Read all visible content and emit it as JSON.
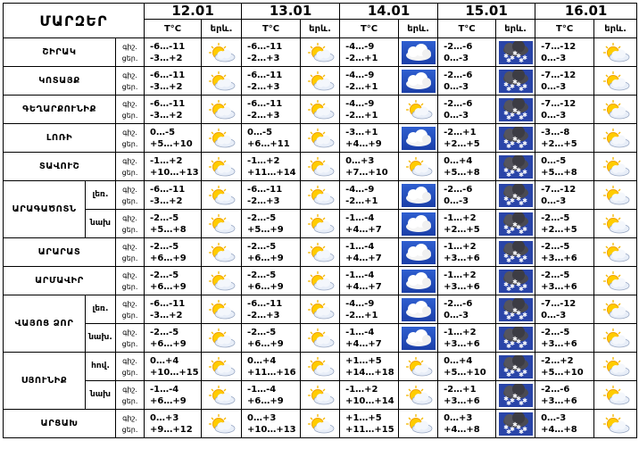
{
  "header": {
    "title": "ՄԱՐԶԵՐ",
    "dates": [
      "12.01",
      "13.01",
      "14.01",
      "15.01",
      "16.01"
    ],
    "temp_label": "T°C",
    "weather_label": "երև."
  },
  "labels": {
    "night": "գիշ.",
    "day": "ցեր."
  },
  "rows": [
    {
      "region": "ՇԻՐԱԿ",
      "sub": "",
      "lbl_n": "գիշ.",
      "lbl_d": "ցեր.",
      "cells": [
        {
          "n": "-6…-11",
          "d": "-3…+2",
          "icon": "partly-cloudy-icon"
        },
        {
          "n": "-6…-11",
          "d": "-2…+3",
          "icon": "partly-cloudy-icon"
        },
        {
          "n": "-4…-9",
          "d": "-2…+1",
          "icon": "cloud-icon"
        },
        {
          "n": "-2…-6",
          "d": "0…-3",
          "icon": "snow-cloud-icon"
        },
        {
          "n": "-7…-12",
          "d": "0…-3",
          "icon": "partly-cloudy-icon"
        }
      ]
    },
    {
      "region": "ԿՈՏԱՅՔ",
      "sub": "",
      "lbl_n": "գիշ.",
      "lbl_d": "ցեր.",
      "cells": [
        {
          "n": "-6…-11",
          "d": "-3…+2",
          "icon": "partly-cloudy-icon"
        },
        {
          "n": "-6…-11",
          "d": "-2…+3",
          "icon": "partly-cloudy-icon"
        },
        {
          "n": "-4…-9",
          "d": "-2…+1",
          "icon": "cloud-icon"
        },
        {
          "n": "-2…-6",
          "d": "0…-3",
          "icon": "snow-cloud-icon"
        },
        {
          "n": "-7…-12",
          "d": "0…-3",
          "icon": "partly-cloudy-icon"
        }
      ]
    },
    {
      "region": "ԳԵՂԱՐՔՈՒՆԻՔ",
      "sub": "",
      "lbl_n": "գիշ.",
      "lbl_d": "ցեր.",
      "cells": [
        {
          "n": "-6…-11",
          "d": "-3…+2",
          "icon": "partly-cloudy-icon"
        },
        {
          "n": "-6…-11",
          "d": "-2…+3",
          "icon": "partly-cloudy-icon"
        },
        {
          "n": "-4…-9",
          "d": "-2…+1",
          "icon": "partly-cloudy-icon"
        },
        {
          "n": "-2…-6",
          "d": "0…-3",
          "icon": "snow-cloud-icon"
        },
        {
          "n": "-7…-12",
          "d": "0…-3",
          "icon": "partly-cloudy-icon"
        }
      ]
    },
    {
      "region": "ԼՈՌԻ",
      "sub": "",
      "lbl_n": "գիշ.",
      "lbl_d": "ցեր.",
      "cells": [
        {
          "n": "0…-5",
          "d": "+5…+10",
          "icon": "partly-cloudy-icon"
        },
        {
          "n": "0…-5",
          "d": "+6…+11",
          "icon": "partly-cloudy-icon"
        },
        {
          "n": "-3…+1",
          "d": "+4…+9",
          "icon": "cloud-icon"
        },
        {
          "n": "-2…+1",
          "d": "+2…+5",
          "icon": "snow-cloud-icon"
        },
        {
          "n": "-3…-8",
          "d": "+2…+5",
          "icon": "partly-cloudy-icon"
        }
      ]
    },
    {
      "region": "ՏԱՎՈՒՇ",
      "sub": "",
      "lbl_n": "գիշ.",
      "lbl_d": "ցեր.",
      "cells": [
        {
          "n": "-1…+2",
          "d": "+10…+13",
          "icon": "partly-cloudy-icon"
        },
        {
          "n": "-1…+2",
          "d": "+11…+14",
          "icon": "partly-cloudy-icon"
        },
        {
          "n": "0…+3",
          "d": "+7…+10",
          "icon": "partly-cloudy-icon"
        },
        {
          "n": "0…+4",
          "d": "+5…+8",
          "icon": "snow-cloud-icon"
        },
        {
          "n": "0…-5",
          "d": "+5…+8",
          "icon": "partly-cloudy-icon"
        }
      ]
    },
    {
      "region": "ԱՐԱԳԱԾՈՏՆ",
      "sub": "լեռ.",
      "lbl_n": "գիշ.",
      "lbl_d": "ցեր.",
      "cells": [
        {
          "n": "-6…-11",
          "d": "-3…+2",
          "icon": "partly-cloudy-icon"
        },
        {
          "n": "-6…-11",
          "d": "-2…+3",
          "icon": "partly-cloudy-icon"
        },
        {
          "n": "-4…-9",
          "d": "-2…+1",
          "icon": "cloud-icon"
        },
        {
          "n": "-2…-6",
          "d": "0…-3",
          "icon": "snow-cloud-icon"
        },
        {
          "n": "-7…-12",
          "d": "0…-3",
          "icon": "partly-cloudy-icon"
        }
      ]
    },
    {
      "region": "",
      "sub": "նախ",
      "lbl_n": "գիշ.",
      "lbl_d": "ցեր.",
      "cells": [
        {
          "n": "-2…-5",
          "d": "+5…+8",
          "icon": "partly-cloudy-icon"
        },
        {
          "n": "-2…-5",
          "d": "+5…+9",
          "icon": "partly-cloudy-icon"
        },
        {
          "n": "-1…-4",
          "d": "+4…+7",
          "icon": "cloud-icon"
        },
        {
          "n": "-1…+2",
          "d": "+2…+5",
          "icon": "snow-cloud-icon"
        },
        {
          "n": "-2…-5",
          "d": "+2…+5",
          "icon": "partly-cloudy-icon"
        }
      ]
    },
    {
      "region": "ԱՐԱՐԱՏ",
      "sub": "",
      "lbl_n": "գիշ.",
      "lbl_d": "ցեր.",
      "cells": [
        {
          "n": "-2…-5",
          "d": "+6…+9",
          "icon": "partly-cloudy-icon"
        },
        {
          "n": "-2…-5",
          "d": "+6…+9",
          "icon": "partly-cloudy-icon"
        },
        {
          "n": "-1…-4",
          "d": "+4…+7",
          "icon": "cloud-icon"
        },
        {
          "n": "-1…+2",
          "d": "+3…+6",
          "icon": "snow-cloud-icon"
        },
        {
          "n": "-2…-5",
          "d": "+3…+6",
          "icon": "partly-cloudy-icon"
        }
      ]
    },
    {
      "region": "ԱՐՄԱՎԻՐ",
      "sub": "",
      "lbl_n": "գիշ.",
      "lbl_d": "ցեր.",
      "cells": [
        {
          "n": "-2…-5",
          "d": "+6…+9",
          "icon": "partly-cloudy-icon"
        },
        {
          "n": "-2…-5",
          "d": "+6…+9",
          "icon": "partly-cloudy-icon"
        },
        {
          "n": "-1…-4",
          "d": "+4…+7",
          "icon": "cloud-icon"
        },
        {
          "n": "-1…+2",
          "d": "+3…+6",
          "icon": "snow-cloud-icon"
        },
        {
          "n": "-2…-5",
          "d": "+3…+6",
          "icon": "partly-cloudy-icon"
        }
      ]
    },
    {
      "region": "ՎԱՅՈՑ ՁՈՐ",
      "sub": "լեռ.",
      "lbl_n": "գիշ.",
      "lbl_d": "ցեր.",
      "cells": [
        {
          "n": "-6…-11",
          "d": "-3…+2",
          "icon": "partly-cloudy-icon"
        },
        {
          "n": "-6…-11",
          "d": "-2…+3",
          "icon": "partly-cloudy-icon"
        },
        {
          "n": "-4…-9",
          "d": "-2…+1",
          "icon": "cloud-icon"
        },
        {
          "n": "-2…-6",
          "d": "0…-3",
          "icon": "snow-cloud-icon"
        },
        {
          "n": "-7…-12",
          "d": "0…-3",
          "icon": "partly-cloudy-icon"
        }
      ]
    },
    {
      "region": "",
      "sub": "նախ.",
      "lbl_n": "գիշ.",
      "lbl_d": "ցեր.",
      "cells": [
        {
          "n": "-2…-5",
          "d": "+6…+9",
          "icon": "partly-cloudy-icon"
        },
        {
          "n": "-2…-5",
          "d": "+6…+9",
          "icon": "partly-cloudy-icon"
        },
        {
          "n": "-1…-4",
          "d": "+4…+7",
          "icon": "cloud-icon"
        },
        {
          "n": "-1…+2",
          "d": "+3…+6",
          "icon": "snow-cloud-icon"
        },
        {
          "n": "-2…-5",
          "d": "+3…+6",
          "icon": "partly-cloudy-icon"
        }
      ]
    },
    {
      "region": "ՍՅՈՒՆԻՔ",
      "sub": "հով.",
      "lbl_n": "գիշ.",
      "lbl_d": "ցեր.",
      "cells": [
        {
          "n": "0…+4",
          "d": "+10…+15",
          "icon": "partly-cloudy-icon"
        },
        {
          "n": "0…+4",
          "d": "+11…+16",
          "icon": "partly-cloudy-icon"
        },
        {
          "n": "+1…+5",
          "d": "+14…+18",
          "icon": "partly-cloudy-icon"
        },
        {
          "n": "0…+4",
          "d": "+5…+10",
          "icon": "snow-cloud-icon"
        },
        {
          "n": "-2…+2",
          "d": "+5…+10",
          "icon": "partly-cloudy-icon"
        }
      ]
    },
    {
      "region": "",
      "sub": "նախ",
      "lbl_n": "գիշ.",
      "lbl_d": "ցեր.",
      "cells": [
        {
          "n": "-1…-4",
          "d": "+6…+9",
          "icon": "partly-cloudy-icon"
        },
        {
          "n": "-1…-4",
          "d": "+6…+9",
          "icon": "partly-cloudy-icon"
        },
        {
          "n": "-1…+2",
          "d": "+10…+14",
          "icon": "partly-cloudy-icon"
        },
        {
          "n": "-2…+1",
          "d": "+3…+6",
          "icon": "snow-cloud-icon"
        },
        {
          "n": "-2…-6",
          "d": "+3…+6",
          "icon": "partly-cloudy-icon"
        }
      ]
    },
    {
      "region": "ԱՐՑԱԽ",
      "sub": "",
      "lbl_n": "գիշ.",
      "lbl_d": "ցեր.",
      "cells": [
        {
          "n": "0…+3",
          "d": "+9…+12",
          "icon": "partly-cloudy-icon"
        },
        {
          "n": "0…+3",
          "d": "+10…+13",
          "icon": "partly-cloudy-icon"
        },
        {
          "n": "+1…+5",
          "d": "+11…+15",
          "icon": "partly-cloudy-icon"
        },
        {
          "n": "0…+3",
          "d": "+4…+8",
          "icon": "snow-cloud-icon"
        },
        {
          "n": "0…-3",
          "d": "+4…+8",
          "icon": "partly-cloudy-icon"
        }
      ]
    }
  ]
}
